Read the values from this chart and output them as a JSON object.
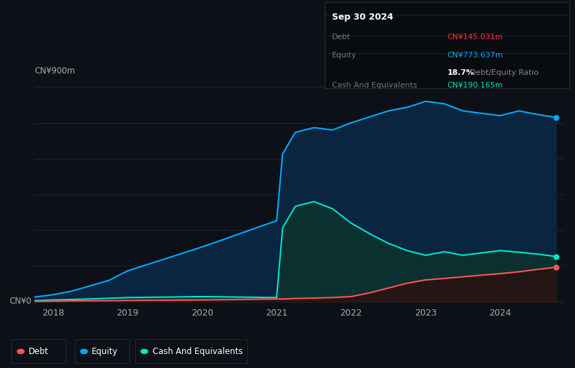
{
  "background_color": "#0d1117",
  "plot_bg_color": "#0d1117",
  "grid_color": "#1e2838",
  "title_box": {
    "date": "Sep 30 2024",
    "debt_label": "Debt",
    "debt_value": "CN¥145.031m",
    "debt_color": "#ff3333",
    "equity_label": "Equity",
    "equity_value": "CN¥773.637m",
    "equity_color": "#00aaff",
    "ratio_value": "18.7%",
    "ratio_label": "Debt/Equity Ratio",
    "ratio_value_color": "#ffffff",
    "ratio_label_color": "#888888",
    "cash_label": "Cash And Equivalents",
    "cash_value": "CN¥190.165m",
    "cash_color": "#00e5cc",
    "box_bg": "#080c10",
    "label_color": "#777777"
  },
  "ylabel_top": "CN¥900m",
  "ylabel_bottom": "CN¥0",
  "axis_label_color": "#aaaaaa",
  "x_tick_labels": [
    "2018",
    "2019",
    "2020",
    "2021",
    "2022",
    "2023",
    "2024"
  ],
  "equity_color": "#00aaff",
  "equity_fill_color": "#0a2540",
  "debt_color": "#ff5555",
  "debt_fill_color": "#251515",
  "cash_color": "#00e5cc",
  "cash_fill_color": "#0a3030",
  "line_width": 1.5,
  "equity": {
    "x": [
      2017.75,
      2018.0,
      2018.25,
      2018.75,
      2019.0,
      2019.5,
      2020.0,
      2020.5,
      2021.0,
      2021.08,
      2021.25,
      2021.5,
      2021.75,
      2022.0,
      2022.25,
      2022.5,
      2022.75,
      2023.0,
      2023.25,
      2023.5,
      2023.75,
      2024.0,
      2024.25,
      2024.5,
      2024.75
    ],
    "y": [
      20,
      30,
      45,
      90,
      130,
      180,
      230,
      285,
      340,
      620,
      710,
      730,
      720,
      750,
      775,
      800,
      815,
      840,
      830,
      800,
      790,
      780,
      800,
      785,
      773
    ]
  },
  "cash": {
    "x": [
      2017.75,
      2018.0,
      2018.25,
      2018.75,
      2019.0,
      2019.5,
      2020.0,
      2020.5,
      2021.0,
      2021.08,
      2021.25,
      2021.5,
      2021.75,
      2022.0,
      2022.25,
      2022.5,
      2022.75,
      2023.0,
      2023.25,
      2023.5,
      2023.75,
      2024.0,
      2024.25,
      2024.5,
      2024.75
    ],
    "y": [
      5,
      8,
      10,
      15,
      18,
      20,
      22,
      20,
      18,
      310,
      400,
      420,
      390,
      330,
      285,
      245,
      215,
      195,
      210,
      195,
      205,
      215,
      208,
      200,
      190
    ]
  },
  "debt": {
    "x": [
      2017.75,
      2018.0,
      2018.25,
      2018.75,
      2019.0,
      2019.5,
      2020.0,
      2020.5,
      2021.0,
      2021.08,
      2021.25,
      2021.5,
      2021.75,
      2022.0,
      2022.25,
      2022.5,
      2022.75,
      2023.0,
      2023.25,
      2023.5,
      2023.75,
      2024.0,
      2024.25,
      2024.5,
      2024.75
    ],
    "y": [
      2,
      3,
      4,
      5,
      6,
      7,
      8,
      10,
      12,
      12,
      14,
      16,
      18,
      22,
      38,
      58,
      78,
      92,
      98,
      105,
      112,
      118,
      126,
      136,
      145
    ]
  },
  "legend": [
    {
      "label": "Debt",
      "color": "#ff5555"
    },
    {
      "label": "Equity",
      "color": "#00aaff"
    },
    {
      "label": "Cash And Equivalents",
      "color": "#00e5cc"
    }
  ],
  "y_max": 900,
  "y_grid_lines": [
    0,
    150,
    300,
    450,
    600,
    750,
    900
  ]
}
